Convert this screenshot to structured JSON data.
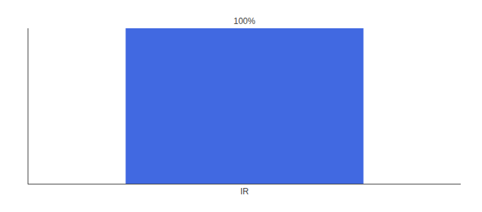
{
  "chart_data": {
    "type": "bar",
    "categories": [
      "IR"
    ],
    "values": [
      100
    ],
    "value_labels": [
      "100%"
    ],
    "data_labels": true,
    "color": "#4169E1",
    "ylim": [
      0,
      100
    ],
    "grid": false,
    "tick_labels": "x"
  }
}
